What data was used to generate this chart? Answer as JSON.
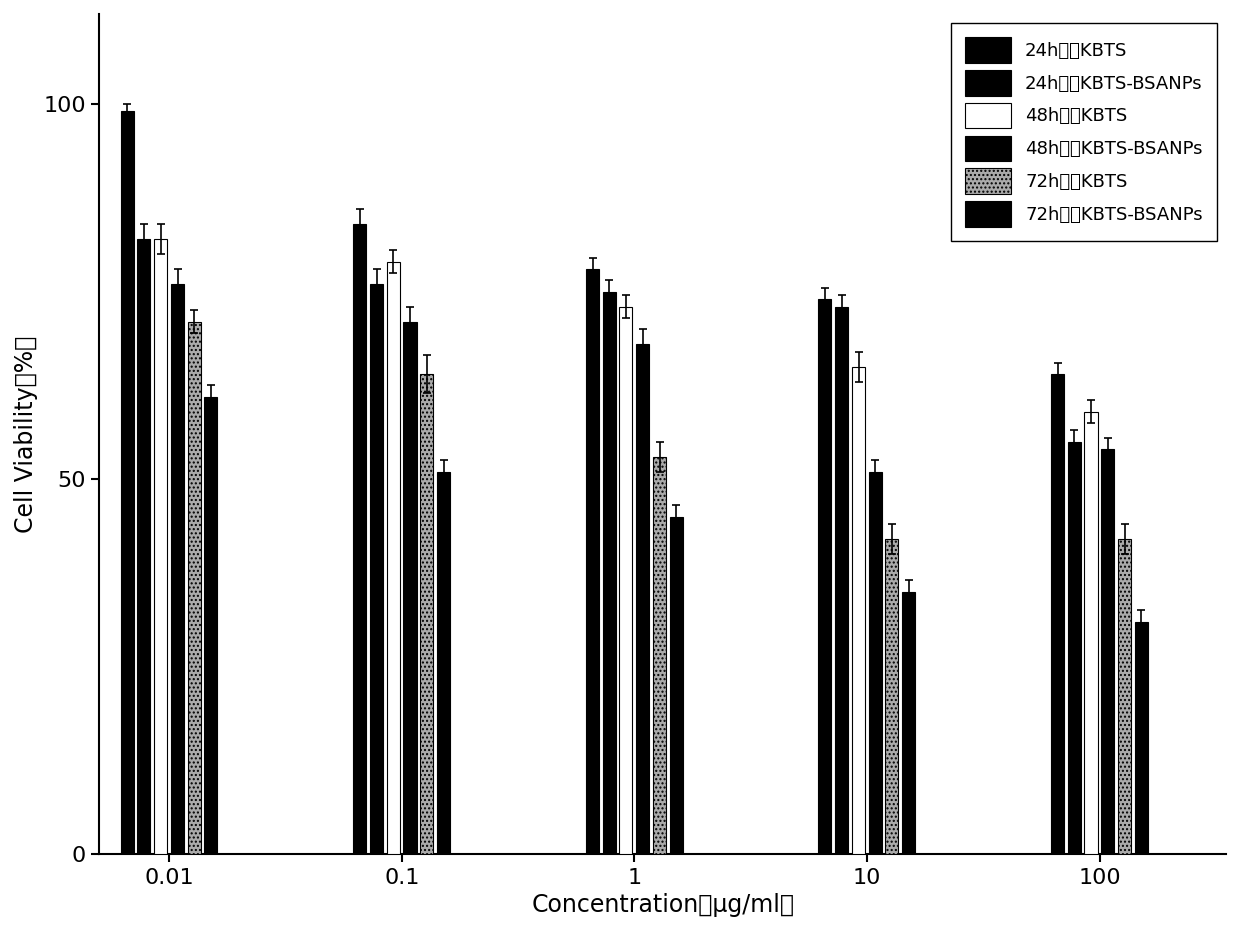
{
  "concentrations": [
    0.01,
    0.1,
    1,
    10,
    100
  ],
  "series": {
    "24h游离KBTS": {
      "values": [
        99,
        84,
        78,
        74,
        64
      ],
      "errors": [
        1.0,
        2.0,
        1.5,
        1.5,
        1.5
      ],
      "color": "#000000",
      "hatch": null,
      "edgecolor": "#000000"
    },
    "24h冻干KBTS-BSANPs": {
      "values": [
        82,
        76,
        75,
        73,
        55
      ],
      "errors": [
        2.0,
        2.0,
        1.5,
        1.5,
        1.5
      ],
      "color": "#000000",
      "hatch": null,
      "edgecolor": "#000000"
    },
    "48h游离KBTS": {
      "values": [
        82,
        79,
        73,
        65,
        59
      ],
      "errors": [
        2.0,
        1.5,
        1.5,
        2.0,
        1.5
      ],
      "color": "#ffffff",
      "hatch": null,
      "edgecolor": "#000000"
    },
    "48h冻干KBTS-BSANPs": {
      "values": [
        76,
        71,
        68,
        51,
        54
      ],
      "errors": [
        2.0,
        2.0,
        2.0,
        1.5,
        1.5
      ],
      "color": "#000000",
      "hatch": null,
      "edgecolor": "#000000"
    },
    "72h游离KBTS": {
      "values": [
        71,
        64,
        53,
        42,
        42
      ],
      "errors": [
        1.5,
        2.5,
        2.0,
        2.0,
        2.0
      ],
      "color": "#aaaaaa",
      "hatch": "....",
      "edgecolor": "#000000"
    },
    "72h冻干KBTS-BSANPs": {
      "values": [
        61,
        51,
        45,
        35,
        31
      ],
      "errors": [
        1.5,
        1.5,
        1.5,
        1.5,
        1.5
      ],
      "color": "#000000",
      "hatch": null,
      "edgecolor": "#000000"
    }
  },
  "series_order": [
    "24h游离KBTS",
    "24h冻干KBTS-BSANPs",
    "48h游离KBTS",
    "48h冻干KBTS-BSANPs",
    "72h游离KBTS",
    "72h冻干KBTS-BSANPs"
  ],
  "legend_labels": [
    "24h游离KBTS",
    "24h冻干KBTS-BSANPs",
    "48h游离KBTS",
    "48h冻干KBTS-BSANPs",
    "72h游离KBTS",
    "72h冻干KBTS-BSANPs"
  ],
  "xlabel": "Concentration（μg/ml）",
  "ylabel": "Cell Viability（%）",
  "ylim": [
    0,
    112
  ],
  "yticks": [
    0,
    50,
    100
  ],
  "xtick_labels": [
    "0.01",
    "0.1",
    "1",
    "10",
    "100"
  ],
  "figsize": [
    12.4,
    9.31
  ],
  "dpi": 100,
  "background": "#ffffff"
}
